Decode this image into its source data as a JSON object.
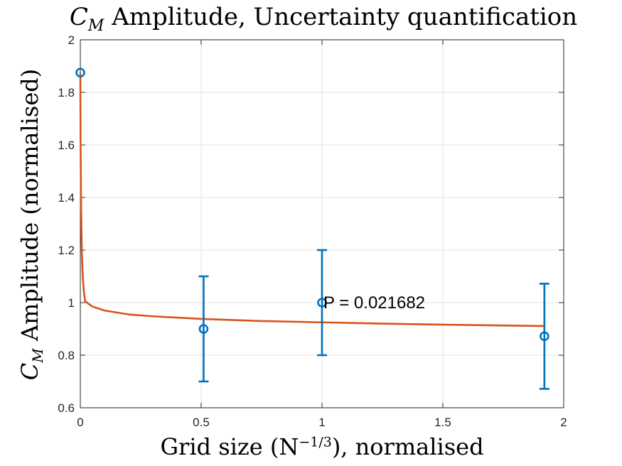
{
  "chart_data": {
    "type": "scatter",
    "title": {
      "symbol": "C",
      "subscript": "M",
      "text": "Amplitude, Uncertainty quantification"
    },
    "xlabel": {
      "before": "Grid size (N",
      "superscript": "−1/3",
      "after": "), normalised"
    },
    "ylabel": {
      "symbol": "C",
      "subscript": "M",
      "text": "Amplitude (normalised)"
    },
    "xlim": [
      0,
      2
    ],
    "ylim": [
      0.6,
      2
    ],
    "xticks": [
      0,
      0.5,
      1,
      1.5,
      2
    ],
    "xtick_labels": [
      "0",
      "0.5",
      "1",
      "1.5",
      "2"
    ],
    "yticks": [
      0.6,
      0.8,
      1.0,
      1.2,
      1.4,
      1.6,
      1.8,
      2.0
    ],
    "ytick_labels": [
      "0.6",
      "0.8",
      "1",
      "1.2",
      "1.4",
      "1.6",
      "1.8",
      "2"
    ],
    "grid": true,
    "series": [
      {
        "kind": "errorbar",
        "color": "#0072BD",
        "x": [
          0,
          0.51,
          1.0,
          1.92
        ],
        "y": [
          1.875,
          0.9,
          1.0,
          0.872
        ],
        "err": [
          0,
          0.2,
          0.2,
          0.2
        ]
      },
      {
        "kind": "fit-curve",
        "color": "#D95319",
        "x": [
          0,
          0.001,
          0.003,
          0.006,
          0.01,
          0.015,
          0.02,
          0.05,
          0.1,
          0.2,
          0.3,
          0.5,
          0.75,
          1.0,
          1.25,
          1.5,
          1.75,
          1.92
        ],
        "y": [
          1.875,
          1.62,
          1.38,
          1.2,
          1.1,
          1.04,
          1.005,
          0.985,
          0.97,
          0.955,
          0.948,
          0.938,
          0.93,
          0.925,
          0.92,
          0.916,
          0.913,
          0.911
        ]
      }
    ],
    "annotations": [
      {
        "text": "P = 0.021682",
        "x": 1.0,
        "y": 1.0
      }
    ]
  }
}
